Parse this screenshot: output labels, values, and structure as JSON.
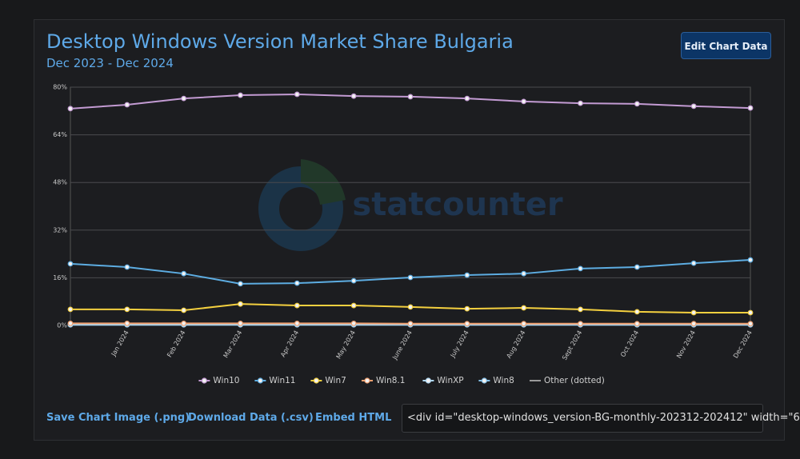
{
  "header": {
    "title": "Desktop Windows Version Market Share Bulgaria",
    "subtitle": "Dec 2023 - Dec 2024",
    "button": "Edit Chart Data"
  },
  "chart_data": {
    "type": "line",
    "watermark": "statcounter",
    "categories": [
      null,
      "Jan 2024",
      "Feb 2024",
      "Mar 2024",
      "Apr 2024",
      "May 2024",
      "June 2024",
      "July 2024",
      "Aug 2024",
      "Sept 2024",
      "Oct 2024",
      "Nov 2024",
      "Dec 2024"
    ],
    "ylim": [
      0,
      80
    ],
    "yticks": [
      {
        "value": 0,
        "label": "0%"
      },
      {
        "value": 16,
        "label": "16%"
      },
      {
        "value": 32,
        "label": "32%"
      },
      {
        "value": 48,
        "label": "48%"
      },
      {
        "value": 64,
        "label": "64%"
      },
      {
        "value": 80,
        "label": "80%"
      }
    ],
    "grid": true,
    "series": [
      {
        "name": "Win10",
        "color": "#c39bd3",
        "values": [
          72.8,
          74.1,
          76.2,
          77.3,
          77.6,
          77.0,
          76.8,
          76.2,
          75.2,
          74.6,
          74.4,
          73.6,
          73.0
        ]
      },
      {
        "name": "Win11",
        "color": "#5dade2",
        "values": [
          20.7,
          19.6,
          17.4,
          14.0,
          14.2,
          15.0,
          16.1,
          16.9,
          17.4,
          19.1,
          19.6,
          20.9,
          22.0
        ]
      },
      {
        "name": "Win7",
        "color": "#f4d03f",
        "values": [
          5.4,
          5.4,
          5.1,
          7.2,
          6.7,
          6.7,
          6.2,
          5.6,
          5.9,
          5.4,
          4.6,
          4.3,
          4.3
        ]
      },
      {
        "name": "Win8.1",
        "color": "#f0a070",
        "values": [
          0.7,
          0.7,
          0.7,
          0.7,
          0.7,
          0.7,
          0.6,
          0.6,
          0.6,
          0.6,
          0.6,
          0.6,
          0.6
        ]
      },
      {
        "name": "WinXP",
        "color": "#aed6f1",
        "values": [
          0.3,
          0.3,
          0.3,
          0.3,
          0.3,
          0.3,
          0.3,
          0.3,
          0.3,
          0.3,
          0.3,
          0.3,
          0.3
        ]
      },
      {
        "name": "Win8",
        "color": "#85c1e9",
        "values": [
          0.2,
          0.2,
          0.2,
          0.2,
          0.2,
          0.2,
          0.2,
          0.2,
          0.2,
          0.2,
          0.2,
          0.2,
          0.2
        ]
      },
      {
        "name": "Other (dotted)",
        "color": "#9a9a9a",
        "dotted": true,
        "values": [
          0.4,
          0.4,
          0.4,
          0.4,
          0.4,
          0.4,
          0.4,
          0.4,
          0.4,
          0.4,
          0.4,
          0.4,
          0.4
        ]
      }
    ]
  },
  "footer": {
    "links": [
      "Save Chart Image (.png)",
      "Download Data (.csv)",
      "Embed HTML"
    ],
    "embed_code": "<div id=\"desktop-windows_version-BG-monthly-202312-202412\" width=\"6"
  }
}
